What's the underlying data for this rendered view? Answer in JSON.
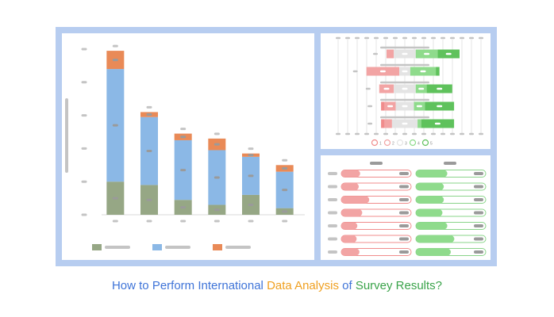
{
  "colors": {
    "frame": "#b7cdf0",
    "placeholder": "#c4c4c4",
    "bar_green": "#96a785",
    "bar_blue": "#8bb8e6",
    "bar_orange": "#e98a57",
    "neg_fill": "#f2a4a4",
    "neutral_fill": "#e4e4e4",
    "pos_fill": "#8fdb8c",
    "pos_dark": "#5fc25c",
    "track_red": "#f08c8c",
    "track_green": "#8ad48a"
  },
  "headline": {
    "part1": "How to Perform International ",
    "part2": "Data Analysis",
    "part3": " of ",
    "part4": "Survey Results?",
    "colors": [
      "#3f74d8",
      "#f0a020",
      "#3f74d8",
      "#3aa34a"
    ]
  },
  "chart_data": [
    {
      "type": "bar",
      "stacked": true,
      "categories": [
        "",
        "",
        "",
        "",
        "",
        ""
      ],
      "series": [
        {
          "values": [
            20,
            18,
            9,
            6,
            12,
            4
          ]
        },
        {
          "values": [
            68,
            41,
            36,
            33,
            23,
            22
          ]
        },
        {
          "values": [
            11,
            3,
            4,
            7,
            2,
            4
          ]
        }
      ],
      "ylim": [
        0,
        100
      ],
      "grid": false,
      "legend": "bottom"
    },
    {
      "type": "bar",
      "orientation": "horizontal",
      "stacked": true,
      "diverging": true,
      "rows": [
        {
          "neg_strong": 0,
          "neg": 10,
          "neutral": 30,
          "pos": 30,
          "pos_strong": 30
        },
        {
          "neg_strong": 0,
          "neg": 45,
          "neutral": 15,
          "pos": 35,
          "pos_strong": 5
        },
        {
          "neg_strong": 0,
          "neg": 20,
          "neutral": 30,
          "pos": 15,
          "pos_strong": 35
        },
        {
          "neg_strong": 5,
          "neg": 15,
          "neutral": 25,
          "pos": 15,
          "pos_strong": 40
        },
        {
          "neg_strong": 5,
          "neg": 10,
          "neutral": 35,
          "pos": 5,
          "pos_strong": 45
        }
      ],
      "legend_marks": [
        "1",
        "2",
        "3",
        "4",
        "5"
      ],
      "legend": "bottom"
    },
    {
      "type": "bar",
      "orientation": "horizontal",
      "left_series": {
        "values": [
          27,
          25,
          40,
          30,
          23,
          22,
          26
        ]
      },
      "right_series": {
        "values": [
          45,
          40,
          40,
          38,
          45,
          55,
          50
        ]
      },
      "xlim": [
        0,
        100
      ]
    }
  ]
}
